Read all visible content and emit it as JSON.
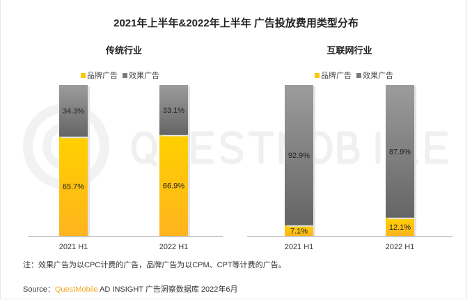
{
  "title": "2021年上半年&2022年上半年 广告投放费用类型分布",
  "watermark": "QUESTMOBILE",
  "colors": {
    "brand": "#FFC700",
    "performance": "#808080",
    "source_brand": "#F5A623"
  },
  "chart_data": [
    {
      "type": "bar",
      "stacked": true,
      "title": "传统行业",
      "categories": [
        "2021 H1",
        "2022 H1"
      ],
      "series": [
        {
          "name": "品牌广告",
          "values": [
            65.7,
            66.9
          ],
          "labels": [
            "65.7%",
            "66.9%"
          ]
        },
        {
          "name": "效果广告",
          "values": [
            34.3,
            33.1
          ],
          "labels": [
            "34.3%",
            "33.1%"
          ]
        }
      ],
      "ylim": [
        0,
        100
      ],
      "legend": "top",
      "grid": false
    },
    {
      "type": "bar",
      "stacked": true,
      "title": "互联网行业",
      "categories": [
        "2021 H1",
        "2022 H1"
      ],
      "series": [
        {
          "name": "品牌广告",
          "values": [
            7.1,
            12.1
          ],
          "labels": [
            "7.1%",
            "12.1%"
          ]
        },
        {
          "name": "效果广告",
          "values": [
            92.9,
            87.9
          ],
          "labels": [
            "92.9%",
            "87.9%"
          ]
        }
      ],
      "ylim": [
        0,
        100
      ],
      "legend": "top",
      "grid": false
    }
  ],
  "note": "注：效果广告为以CPC计费的广告，品牌广告为以CPM、CPT等计费的广告。",
  "source": {
    "label": "Source：",
    "brand": "QuestMobile",
    "rest": " AD INSIGHT 广告洞察数据库 2022年6月"
  }
}
